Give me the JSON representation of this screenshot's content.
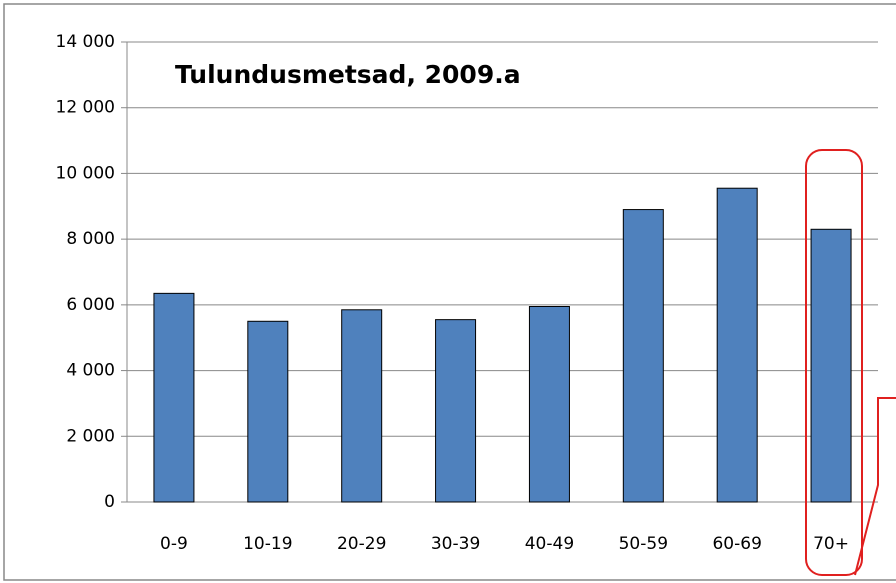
{
  "chart_data": {
    "type": "bar",
    "title": "Tulundusmetsad, 2009.a",
    "categories": [
      "0-9",
      "10-19",
      "20-29",
      "30-39",
      "40-49",
      "50-59",
      "60-69",
      "70+"
    ],
    "values": [
      6350,
      5500,
      5850,
      5550,
      5950,
      8900,
      9550,
      8300
    ],
    "color": "#4f81bd",
    "ylim": [
      0,
      14000
    ],
    "yticks": [
      0,
      {
        "value": 2000,
        "label": "2 000"
      },
      {
        "value": 4000,
        "label": "4 000"
      },
      {
        "value": 6000,
        "label": "6 000"
      },
      {
        "value": 8000,
        "label": "8 000"
      },
      {
        "value": 10000,
        "label": "10 000"
      },
      {
        "value": 12000,
        "label": "12 000"
      },
      {
        "value": 14000,
        "label": "14 000"
      }
    ],
    "grid": true
  }
}
